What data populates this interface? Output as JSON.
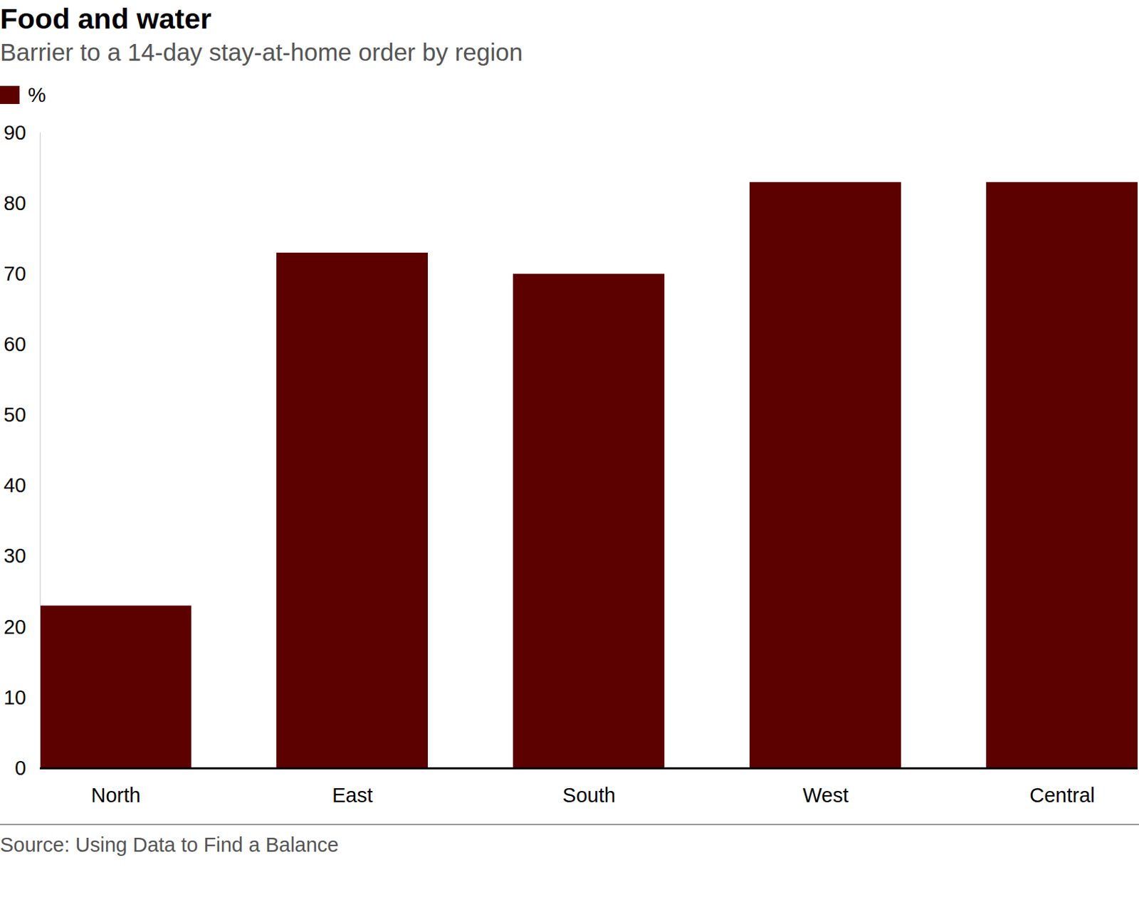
{
  "chart_data": {
    "type": "bar",
    "title": "Food and water",
    "subtitle": "Barrier to a 14-day stay-at-home order by region",
    "categories": [
      "North",
      "East",
      "South",
      "West",
      "Central"
    ],
    "series": [
      {
        "name": "%",
        "color": "#5c0000",
        "values": [
          23,
          73,
          70,
          83,
          83
        ]
      }
    ],
    "legend": "top-left",
    "ylim": [
      0,
      90
    ],
    "yticks": [
      0,
      10,
      20,
      30,
      40,
      50,
      60,
      70,
      80,
      90
    ],
    "grid": false,
    "source": "Source: Using Data to Find a Balance"
  }
}
